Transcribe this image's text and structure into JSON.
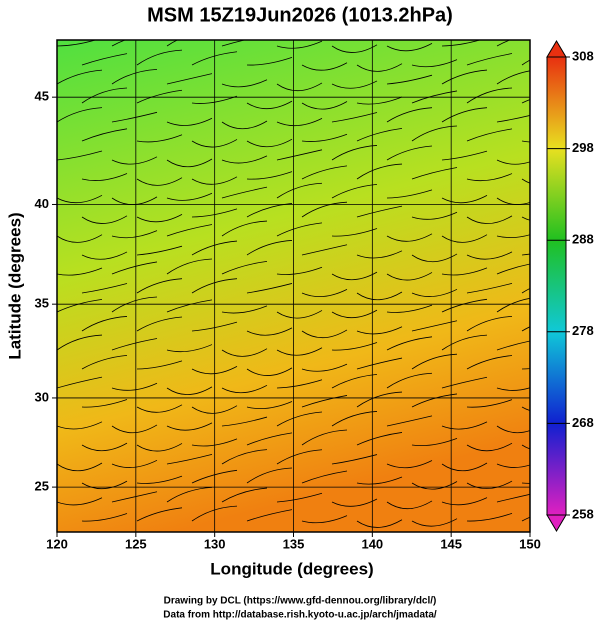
{
  "title": "MSM 15Z19Jun2026 (1013.2hPa)",
  "map": {
    "xlabel": "Longitude (degrees)",
    "ylabel": "Latitude  (degrees)",
    "xlim": [
      120,
      150
    ],
    "ylim": [
      22.4,
      47.5
    ],
    "xticks": [
      120,
      125,
      130,
      135,
      140,
      145,
      150
    ],
    "yticks": [
      25,
      30,
      35,
      40,
      45
    ],
    "colorbar": {
      "lim": [
        258,
        308
      ],
      "ticks": [
        258,
        268,
        278,
        288,
        298,
        308
      ],
      "colors": [
        "#e020c0",
        "#1020d0",
        "#10c8d8",
        "#20c020",
        "#e8e020",
        "#e83010"
      ]
    }
  },
  "footer": [
    "Drawing by DCL (https://www.gfd-dennou.org/library/dcl/)",
    "Data from http://database.rish.kyoto-u.ac.jp/arch/jmadata/"
  ]
}
